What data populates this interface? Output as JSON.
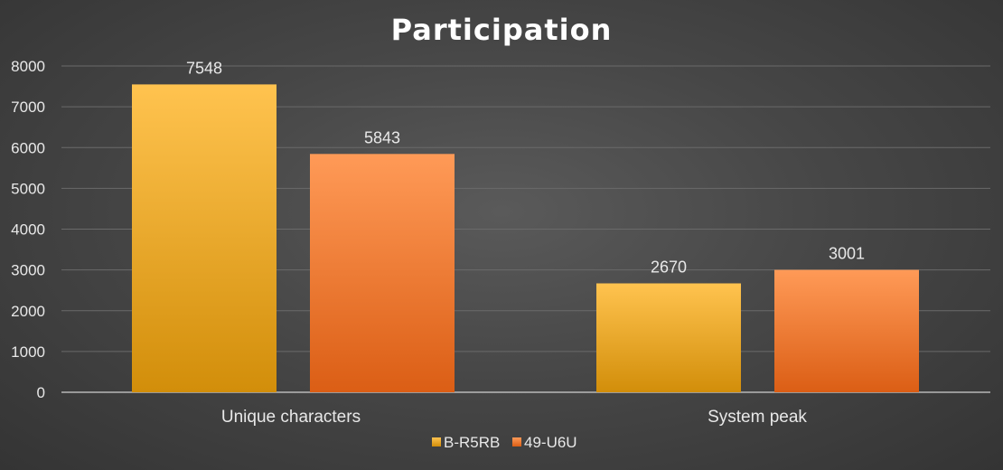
{
  "chart_data": {
    "type": "bar",
    "title": "Participation",
    "categories": [
      "Unique characters",
      "System peak"
    ],
    "series": [
      {
        "name": "B-R5RB",
        "values": [
          7548,
          2670
        ],
        "color_top": "#ffc34f",
        "color_bottom": "#d28e0a"
      },
      {
        "name": "49-U6U",
        "values": [
          5843,
          3001
        ],
        "color_top": "#ff9a57",
        "color_bottom": "#db5e15"
      }
    ],
    "xlabel": "",
    "ylabel": "",
    "ylim": [
      0,
      8000
    ],
    "yticks": [
      0,
      1000,
      2000,
      3000,
      4000,
      5000,
      6000,
      7000,
      8000
    ],
    "grid": true,
    "data_labels": true,
    "legend_position": "bottom",
    "grid_color": "#6a6a6a",
    "axis_color": "#d0d0d0"
  }
}
